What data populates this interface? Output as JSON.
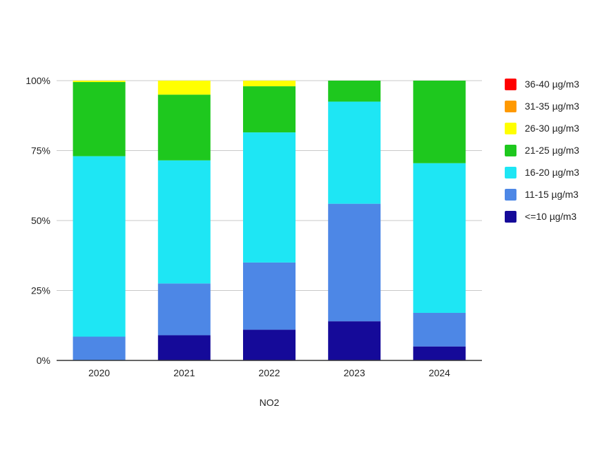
{
  "chart_data": {
    "type": "bar",
    "stacked": true,
    "categories": [
      "2020",
      "2021",
      "2022",
      "2023",
      "2024"
    ],
    "ylim": [
      0,
      100
    ],
    "yticks": [
      "0%",
      "25%",
      "50%",
      "75%",
      "100%"
    ],
    "xlabel": "NO2",
    "ylabel": "",
    "grid": true,
    "legend_position": "right",
    "series": [
      {
        "name": "<=10 µg/m3",
        "color": "#150a99",
        "values": [
          0,
          9,
          11,
          14,
          5
        ]
      },
      {
        "name": "11-15 µg/m3",
        "color": "#4d87e6",
        "values": [
          8.5,
          18.5,
          24,
          42,
          12
        ]
      },
      {
        "name": "16-20 µg/m3",
        "color": "#1ee6f4",
        "values": [
          64.5,
          44,
          46.5,
          36.5,
          53.5
        ]
      },
      {
        "name": "21-25 µg/m3",
        "color": "#1ec81e",
        "values": [
          26.5,
          23.5,
          16.5,
          7.5,
          29.5
        ]
      },
      {
        "name": "26-30 µg/m3",
        "color": "#ffff00",
        "values": [
          0.5,
          5,
          2,
          0,
          0
        ]
      },
      {
        "name": "31-35 µg/m3",
        "color": "#ff9900",
        "values": [
          0,
          0,
          0,
          0,
          0
        ]
      },
      {
        "name": "36-40 µg/m3",
        "color": "#ff0000",
        "values": [
          0,
          0,
          0,
          0,
          0
        ]
      }
    ],
    "legend_order": [
      "36-40 µg/m3",
      "31-35 µg/m3",
      "26-30 µg/m3",
      "21-25 µg/m3",
      "16-20 µg/m3",
      "11-15 µg/m3",
      "<=10 µg/m3"
    ]
  }
}
